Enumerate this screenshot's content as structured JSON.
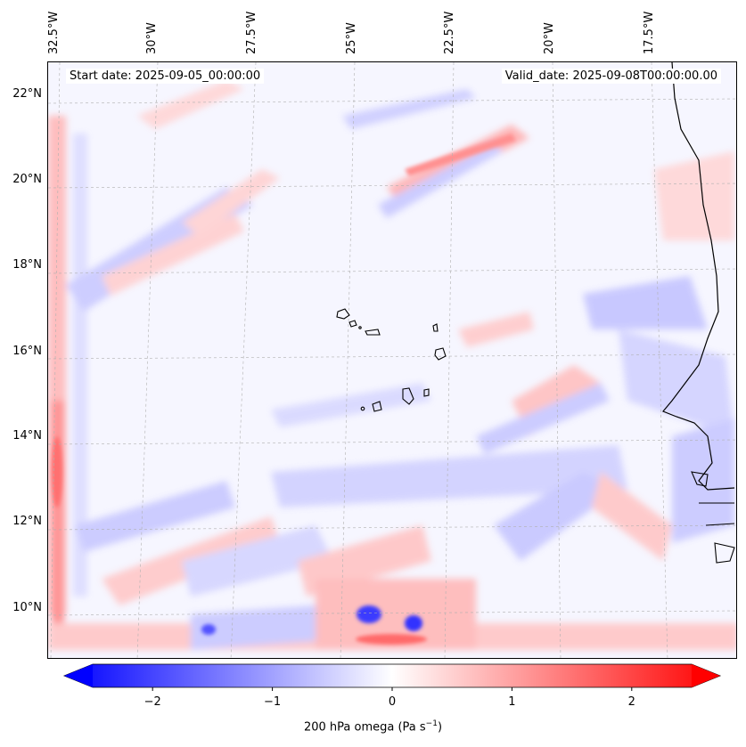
{
  "annotations": {
    "start": "Start date: 2025-09-05_00:00:00",
    "valid": "Valid_date: 2025-09-08T00:00:00.00"
  },
  "lon_labels": [
    "32.5°W",
    "30°W",
    "27.5°W",
    "25°W",
    "22.5°W",
    "20°W",
    "17.5°W"
  ],
  "lat_labels": [
    "22°N",
    "20°N",
    "18°N",
    "16°N",
    "14°N",
    "12°N",
    "10°N"
  ],
  "colorbar": {
    "ticks": [
      "−2",
      "−1",
      "0",
      "1",
      "2"
    ],
    "tick_values": [
      -2,
      -1,
      0,
      1,
      2
    ],
    "min": -2.5,
    "max": 2.5,
    "label_main": "200 hPa omega (Pa s",
    "label_exp": "−1",
    "label_end": ")",
    "neg_color": "#0000ff",
    "pos_color": "#ff0000"
  }
}
